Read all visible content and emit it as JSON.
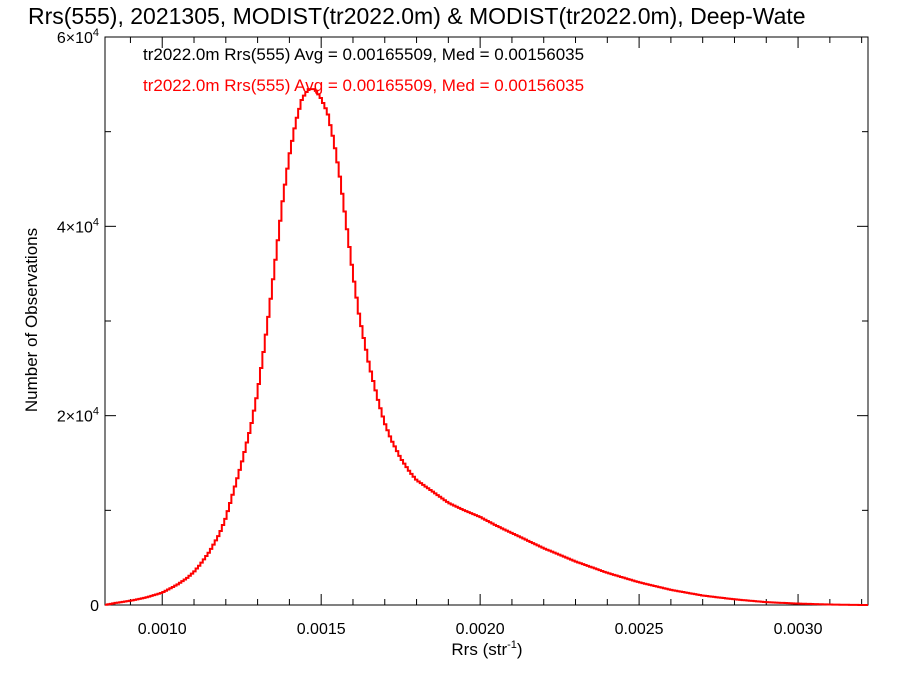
{
  "chart_data": {
    "type": "line",
    "title": "Rrs(555), 2021305, MODIST(tr2022.0m) & MODIST(tr2022.0m), Deep-Wate",
    "xlabel": "Rrs (str",
    "xlabel_sup": "-1",
    "xlabel_close": ")",
    "ylabel": "Number of Observations",
    "xlim": [
      0.00082,
      0.00322
    ],
    "ylim": [
      0,
      60000
    ],
    "x_ticks": [
      {
        "value": 0.001,
        "label": "0.0010"
      },
      {
        "value": 0.0015,
        "label": "0.0015"
      },
      {
        "value": 0.002,
        "label": "0.0020"
      },
      {
        "value": 0.0025,
        "label": "0.0025"
      },
      {
        "value": 0.003,
        "label": "0.0030"
      }
    ],
    "y_ticks": [
      {
        "value": 0,
        "base": "0",
        "exp": ""
      },
      {
        "value": 20000,
        "base": "2×10",
        "exp": "4"
      },
      {
        "value": 40000,
        "base": "4×10",
        "exp": "4"
      },
      {
        "value": 60000,
        "base": "6×10",
        "exp": "4"
      }
    ],
    "x_minor_step": 0.0001,
    "y_minor_step": 10000,
    "grid": false,
    "legend": [
      {
        "text": "tr2022.0m Rrs(555) Avg = 0.00165509, Med = 0.00156035",
        "color": "#000000"
      },
      {
        "text": "tr2022.0m Rrs(555) Avg = 0.00165509, Med = 0.00156035",
        "color": "#ff0000"
      }
    ],
    "legend_placement": "top-left",
    "series": [
      {
        "color": "#ff0000",
        "style": "histogram-step",
        "x": [
          0.00082,
          0.00085,
          0.0009,
          0.00095,
          0.001,
          0.00105,
          0.00108,
          0.0011,
          0.00112,
          0.00115,
          0.00118,
          0.0012,
          0.00122,
          0.00125,
          0.00128,
          0.0013,
          0.00132,
          0.00134,
          0.00136,
          0.00138,
          0.0014,
          0.00142,
          0.00144,
          0.00146,
          0.00148,
          0.0015,
          0.00152,
          0.00154,
          0.00156,
          0.00158,
          0.0016,
          0.00162,
          0.00165,
          0.00168,
          0.0017,
          0.00172,
          0.00175,
          0.00178,
          0.0018,
          0.00185,
          0.0019,
          0.00195,
          0.002,
          0.00205,
          0.0021,
          0.00215,
          0.0022,
          0.00225,
          0.0023,
          0.0024,
          0.0025,
          0.0026,
          0.0027,
          0.0028,
          0.0029,
          0.003,
          0.0031,
          0.0032,
          0.00322
        ],
        "y": [
          0,
          200,
          450,
          800,
          1300,
          2200,
          2900,
          3500,
          4300,
          5700,
          7500,
          9200,
          11500,
          15000,
          19000,
          22500,
          27000,
          32000,
          37500,
          43000,
          47500,
          51000,
          53500,
          54500,
          54500,
          53500,
          52000,
          49000,
          45000,
          40000,
          35000,
          30500,
          25500,
          21500,
          19200,
          17500,
          15500,
          14000,
          13200,
          12000,
          10800,
          10000,
          9300,
          8400,
          7600,
          6800,
          6000,
          5300,
          4600,
          3400,
          2400,
          1600,
          1000,
          600,
          300,
          150,
          50,
          0,
          0
        ]
      }
    ]
  }
}
